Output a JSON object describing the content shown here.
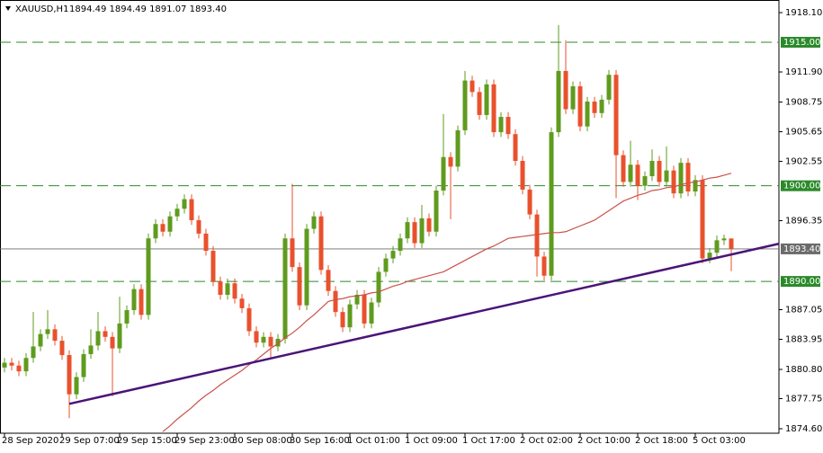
{
  "chart_data": {
    "type": "candlestick",
    "title": "XAUUSD,H1",
    "quote": "1894.49 1894.49 1891.07 1893.40",
    "up_color": "#5f9b1e",
    "down_color": "#e9512d",
    "ylim": [
      1874.13,
      1919.42
    ],
    "yticks": [
      {
        "value": 1918.1,
        "label": "1918.10"
      },
      {
        "value": 1911.9,
        "label": "1911.90"
      },
      {
        "value": 1908.75,
        "label": "1908.75"
      },
      {
        "value": 1905.65,
        "label": "1905.65"
      },
      {
        "value": 1902.55,
        "label": "1902.55"
      },
      {
        "value": 1896.35,
        "label": "1896.35"
      },
      {
        "value": 1887.05,
        "label": "1887.05"
      },
      {
        "value": 1883.95,
        "label": "1883.95"
      },
      {
        "value": 1880.8,
        "label": "1880.80"
      },
      {
        "value": 1877.75,
        "label": "1877.75"
      },
      {
        "value": 1874.6,
        "label": "1874.60"
      }
    ],
    "categories": [
      "28 Sep 2020",
      null,
      null,
      null,
      null,
      null,
      null,
      null,
      "29 Sep 07:00",
      null,
      null,
      null,
      null,
      null,
      null,
      null,
      "29 Sep 15:00",
      null,
      null,
      null,
      null,
      null,
      null,
      null,
      "29 Sep 23:00",
      null,
      null,
      null,
      null,
      null,
      null,
      null,
      "30 Sep 08:00",
      null,
      null,
      null,
      null,
      null,
      null,
      null,
      "30 Sep 16:00",
      null,
      null,
      null,
      null,
      null,
      null,
      null,
      "1 Oct 01:00",
      null,
      null,
      null,
      null,
      null,
      null,
      null,
      "1 Oct 09:00",
      null,
      null,
      null,
      null,
      null,
      null,
      null,
      "1 Oct 17:00",
      null,
      null,
      null,
      null,
      null,
      null,
      null,
      "2 Oct 02:00",
      null,
      null,
      null,
      null,
      null,
      null,
      null,
      "2 Oct 10:00",
      null,
      null,
      null,
      null,
      null,
      null,
      null,
      "2 Oct 18:00",
      null,
      null,
      null,
      null,
      null,
      null,
      null,
      "5 Oct 03:00",
      null,
      null,
      null,
      null,
      null
    ],
    "open": [
      1881.0,
      1881.5,
      1881.2,
      1880.6,
      1882.0,
      1883.2,
      1884.5,
      1885.0,
      1883.8,
      1882.3,
      1878.2,
      1880.0,
      1882.4,
      1883.3,
      1884.8,
      1884.2,
      1883.0,
      1885.6,
      1887.0,
      1889.2,
      1886.5,
      1894.5,
      1896.0,
      1895.2,
      1896.8,
      1897.6,
      1898.6,
      1896.4,
      1895.0,
      1893.2,
      1890.0,
      1888.6,
      1889.8,
      1888.2,
      1887.2,
      1884.8,
      1883.6,
      1884.2,
      1883.2,
      1884.0,
      1894.5,
      1891.5,
      1887.5,
      1895.5,
      1896.8,
      1891.2,
      1889.0,
      1886.8,
      1885.2,
      1887.6,
      1888.6,
      1885.6,
      1887.8,
      1891.0,
      1892.4,
      1893.2,
      1894.5,
      1896.2,
      1894.0,
      1896.6,
      1895.2,
      1899.5,
      1903.0,
      1902.0,
      1905.8,
      1911.0,
      1909.8,
      1907.4,
      1910.6,
      1905.6,
      1907.2,
      1905.4,
      1902.6,
      1899.6,
      1897.0,
      1892.6,
      1890.6,
      1905.6,
      1912.0,
      1908.0,
      1910.4,
      1906.2,
      1908.8,
      1907.6,
      1909.0,
      1911.6,
      1903.2,
      1900.4,
      1902.2,
      1900.0,
      1901.0,
      1902.6,
      1900.4,
      1901.6,
      1899.2,
      1902.4,
      1899.4,
      1900.6,
      1892.4,
      1893.0,
      1894.3,
      1894.49
    ],
    "high": [
      1882.0,
      1882.0,
      1881.7,
      1882.5,
      1886.8,
      1885.0,
      1887.0,
      1885.5,
      1884.3,
      1882.8,
      1880.5,
      1882.9,
      1885.0,
      1886.8,
      1885.3,
      1884.7,
      1888.4,
      1887.5,
      1889.7,
      1889.7,
      1895.0,
      1896.5,
      1896.5,
      1897.3,
      1898.1,
      1899.1,
      1899.1,
      1896.9,
      1895.5,
      1893.7,
      1890.5,
      1890.3,
      1890.3,
      1888.7,
      1887.7,
      1885.3,
      1884.7,
      1884.7,
      1884.5,
      1895.0,
      1900.2,
      1892.0,
      1896.0,
      1897.3,
      1897.3,
      1891.7,
      1889.5,
      1887.3,
      1888.1,
      1889.1,
      1889.1,
      1888.3,
      1891.5,
      1892.9,
      1893.7,
      1895.0,
      1896.7,
      1896.7,
      1898.0,
      1897.1,
      1900.0,
      1907.5,
      1903.5,
      1906.3,
      1912.0,
      1911.5,
      1910.3,
      1911.1,
      1911.1,
      1907.7,
      1907.7,
      1905.9,
      1903.1,
      1900.1,
      1897.5,
      1893.1,
      1906.1,
      1916.8,
      1915.2,
      1910.9,
      1910.9,
      1909.3,
      1909.3,
      1909.5,
      1912.1,
      1912.1,
      1903.7,
      1904.7,
      1902.7,
      1901.5,
      1903.8,
      1903.1,
      1904.1,
      1902.1,
      1902.9,
      1902.9,
      1901.1,
      1901.1,
      1893.5,
      1894.8,
      1894.9,
      1894.49
    ],
    "low": [
      1880.5,
      1880.7,
      1880.1,
      1880.1,
      1881.5,
      1882.7,
      1884.0,
      1883.3,
      1881.8,
      1875.7,
      1877.7,
      1879.5,
      1881.9,
      1882.8,
      1883.7,
      1878.0,
      1882.5,
      1885.1,
      1886.5,
      1886.0,
      1886.0,
      1894.0,
      1894.7,
      1894.7,
      1896.3,
      1897.1,
      1895.9,
      1894.5,
      1892.7,
      1889.5,
      1888.1,
      1888.1,
      1887.7,
      1886.7,
      1884.3,
      1883.1,
      1883.1,
      1882.0,
      1882.7,
      1883.5,
      1891.0,
      1887.0,
      1887.0,
      1895.0,
      1890.7,
      1888.5,
      1886.3,
      1884.7,
      1884.7,
      1887.1,
      1885.1,
      1885.1,
      1887.3,
      1890.5,
      1891.9,
      1892.7,
      1894.0,
      1893.5,
      1893.5,
      1894.7,
      1894.7,
      1899.0,
      1896.5,
      1901.5,
      1905.3,
      1909.3,
      1906.9,
      1906.9,
      1905.1,
      1905.1,
      1904.9,
      1902.1,
      1899.1,
      1896.5,
      1890.5,
      1890.1,
      1890.1,
      1905.1,
      1907.5,
      1907.5,
      1905.7,
      1905.7,
      1907.1,
      1907.1,
      1908.5,
      1898.7,
      1899.9,
      1899.9,
      1898.5,
      1899.5,
      1900.5,
      1899.9,
      1899.9,
      1898.7,
      1898.7,
      1898.9,
      1898.9,
      1891.9,
      1891.9,
      1892.5,
      1893.8,
      1891.07
    ],
    "close": [
      1881.5,
      1881.2,
      1880.6,
      1882.0,
      1883.2,
      1884.5,
      1885.0,
      1883.8,
      1882.3,
      1878.2,
      1880.0,
      1882.4,
      1883.3,
      1884.8,
      1884.2,
      1883.0,
      1885.6,
      1887.0,
      1889.2,
      1886.5,
      1894.5,
      1896.0,
      1895.2,
      1896.8,
      1897.6,
      1898.6,
      1896.4,
      1895.0,
      1893.2,
      1890.0,
      1888.6,
      1889.8,
      1888.2,
      1887.2,
      1884.8,
      1883.6,
      1884.2,
      1883.2,
      1884.0,
      1894.5,
      1891.5,
      1887.5,
      1895.5,
      1896.8,
      1891.2,
      1889.0,
      1886.8,
      1885.2,
      1887.6,
      1888.6,
      1885.6,
      1887.8,
      1891.0,
      1892.4,
      1893.2,
      1894.5,
      1896.2,
      1894.0,
      1896.6,
      1895.2,
      1899.5,
      1903.0,
      1902.0,
      1905.8,
      1911.0,
      1909.8,
      1907.4,
      1910.6,
      1905.6,
      1907.2,
      1905.4,
      1902.6,
      1899.6,
      1897.0,
      1892.6,
      1890.6,
      1905.6,
      1912.0,
      1908.0,
      1910.4,
      1906.2,
      1908.8,
      1907.6,
      1909.0,
      1911.6,
      1903.2,
      1900.4,
      1902.2,
      1900.0,
      1901.0,
      1902.6,
      1900.4,
      1901.6,
      1899.2,
      1902.4,
      1899.4,
      1900.6,
      1892.4,
      1893.0,
      1894.3,
      1894.49,
      1893.4
    ],
    "ma": {
      "color": "#c8524a",
      "values": [
        null,
        null,
        null,
        null,
        null,
        null,
        null,
        null,
        null,
        null,
        null,
        null,
        null,
        null,
        null,
        null,
        null,
        null,
        null,
        null,
        null,
        null,
        1874.3,
        1874.9,
        1875.6,
        1876.2,
        1876.8,
        1877.5,
        1878.1,
        1878.6,
        1879.2,
        1879.7,
        1880.2,
        1880.7,
        1881.3,
        1881.8,
        1882.4,
        1883.0,
        1883.5,
        1884.1,
        1884.6,
        1885.2,
        1885.9,
        1886.5,
        1887.2,
        1887.9,
        1888.1,
        1888.2,
        1888.4,
        1888.5,
        1888.6,
        1888.8,
        1888.9,
        1889.2,
        1889.5,
        1889.7,
        1890.0,
        1890.2,
        1890.4,
        1890.6,
        1890.8,
        1891.0,
        1891.4,
        1891.8,
        1892.2,
        1892.6,
        1893.0,
        1893.4,
        1893.7,
        1894.1,
        1894.5,
        1894.6,
        1894.7,
        1894.8,
        1894.9,
        1895.0,
        1895.1,
        1895.1,
        1895.2,
        1895.5,
        1895.8,
        1896.1,
        1896.4,
        1896.9,
        1897.4,
        1897.9,
        1898.4,
        1898.7,
        1899.0,
        1899.2,
        1899.5,
        1899.6,
        1899.8,
        1899.9,
        1900.1,
        1900.3,
        1900.4,
        1900.6,
        1900.8,
        1900.9,
        1901.1,
        1901.3
      ]
    },
    "trendline": {
      "color": "#4b1478",
      "start": [
        9,
        1877.2
      ],
      "end": [
        108,
        1894.0
      ]
    },
    "levels": {
      "color": "#2b8a2b",
      "values": [
        {
          "value": 1915.0,
          "label": "1915.00"
        },
        {
          "value": 1900.0,
          "label": "1900.00"
        },
        {
          "value": 1890.0,
          "label": "1890.00"
        }
      ]
    },
    "price_line": {
      "color": "#6b6b6b",
      "value": 1893.4,
      "label": "1893.40"
    }
  }
}
